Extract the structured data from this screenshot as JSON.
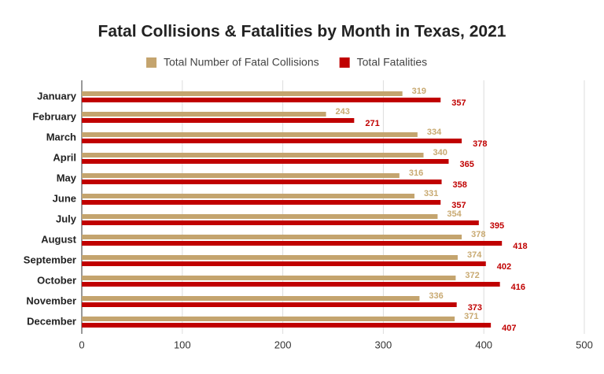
{
  "chart_data": {
    "type": "bar",
    "orientation": "horizontal",
    "title": "Fatal Collisions & Fatalities by Month in Texas, 2021",
    "categories": [
      "January",
      "February",
      "March",
      "April",
      "May",
      "June",
      "July",
      "August",
      "September",
      "October",
      "November",
      "December"
    ],
    "series": [
      {
        "name": "Total Number of Fatal Collisions",
        "color": "#c4a46e",
        "label_color": "#c9aa72",
        "values": [
          319,
          243,
          334,
          340,
          316,
          331,
          354,
          378,
          374,
          372,
          336,
          371
        ]
      },
      {
        "name": "Total Fatalities",
        "color": "#c00000",
        "label_color": "#c00000",
        "values": [
          357,
          271,
          378,
          365,
          358,
          357,
          395,
          418,
          402,
          416,
          373,
          407
        ]
      }
    ],
    "xlim": [
      0,
      500
    ],
    "xticks": [
      0,
      100,
      200,
      300,
      400,
      500
    ],
    "grid": true,
    "legend": "top"
  }
}
